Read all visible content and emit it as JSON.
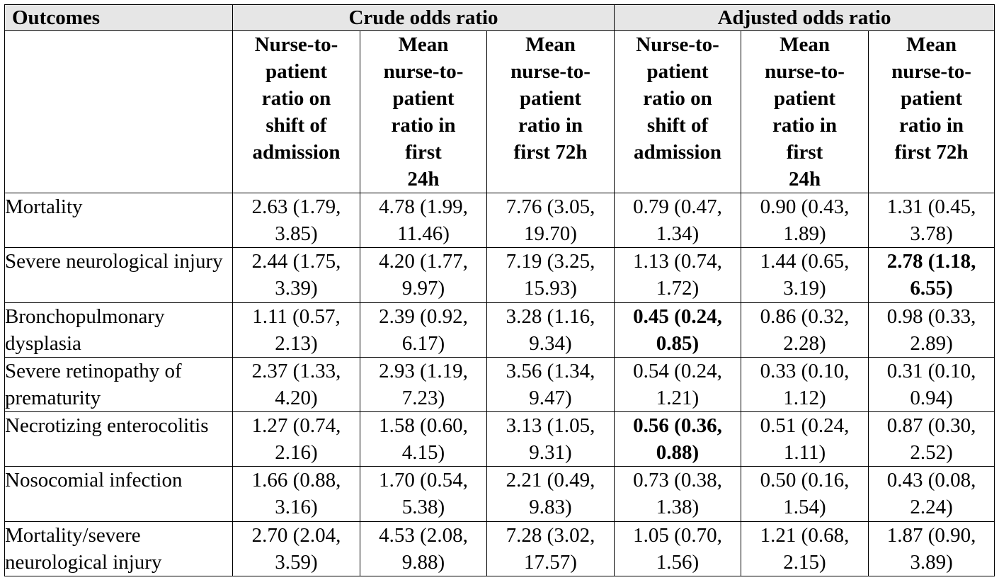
{
  "header": {
    "outcomes_label": "Outcomes",
    "crude_label": "Crude odds ratio",
    "adjusted_label": "Adjusted odds ratio",
    "subheaders": [
      "Nurse-to-patient ratio on shift of admission",
      "Mean nurse-to-patient ratio in first 24h",
      "Mean nurse-to-patient ratio in first 72h",
      "Nurse-to-patient ratio on shift of admission",
      "Mean nurse-to-patient ratio in first 24h",
      "Mean nurse-to-patient ratio in first 72h"
    ]
  },
  "rows": [
    {
      "outcome": "Mortality",
      "values": [
        "2.63 (1.79, 3.85)",
        "4.78 (1.99, 11.46)",
        "7.76 (3.05, 19.70)",
        "0.79 (0.47, 1.34)",
        "0.90 (0.43, 1.89)",
        "1.31 (0.45, 3.78)"
      ],
      "bold": [
        false,
        false,
        false,
        false,
        false,
        false
      ]
    },
    {
      "outcome": "Severe neurological injury",
      "values": [
        "2.44 (1.75, 3.39)",
        "4.20 (1.77, 9.97)",
        "7.19 (3.25, 15.93)",
        "1.13 (0.74, 1.72)",
        "1.44 (0.65, 3.19)",
        "2.78 (1.18, 6.55)"
      ],
      "bold": [
        false,
        false,
        false,
        false,
        false,
        true
      ]
    },
    {
      "outcome": "Bronchopulmonary dysplasia",
      "values": [
        "1.11 (0.57, 2.13)",
        "2.39 (0.92, 6.17)",
        "3.28 (1.16, 9.34)",
        "0.45 (0.24, 0.85)",
        "0.86 (0.32, 2.28)",
        "0.98 (0.33, 2.89)"
      ],
      "bold": [
        false,
        false,
        false,
        true,
        false,
        false
      ]
    },
    {
      "outcome": "Severe retinopathy of prematurity",
      "values": [
        "2.37 (1.33, 4.20)",
        "2.93 (1.19, 7.23)",
        "3.56 (1.34, 9.47)",
        "0.54 (0.24, 1.21)",
        "0.33 (0.10, 1.12)",
        "0.31 (0.10, 0.94)"
      ],
      "bold": [
        false,
        false,
        false,
        false,
        false,
        false
      ]
    },
    {
      "outcome": "Necrotizing enterocolitis",
      "values": [
        "1.27 (0.74, 2.16)",
        "1.58 (0.60, 4.15)",
        "3.13 (1.05, 9.31)",
        "0.56 (0.36, 0.88)",
        "0.51 (0.24, 1.11)",
        "0.87 (0.30, 2.52)"
      ],
      "bold": [
        false,
        false,
        false,
        true,
        false,
        false
      ]
    },
    {
      "outcome": "Nosocomial infection",
      "values": [
        "1.66 (0.88, 3.16)",
        "1.70 (0.54, 5.38)",
        "2.21 (0.49, 9.83)",
        "0.73 (0.38, 1.38)",
        "0.50 (0.16, 1.54)",
        "0.43 (0.08, 2.24)"
      ],
      "bold": [
        false,
        false,
        false,
        false,
        false,
        false
      ]
    },
    {
      "outcome": "Mortality/severe neurological injury",
      "values": [
        "2.70 (2.04, 3.59)",
        "4.53 (2.08, 9.88)",
        "7.28 (3.02, 17.57)",
        "1.05 (0.70, 1.56)",
        "1.21 (0.68, 2.15)",
        "1.87 (0.90, 3.89)"
      ],
      "bold": [
        false,
        false,
        false,
        false,
        false,
        false
      ]
    }
  ]
}
